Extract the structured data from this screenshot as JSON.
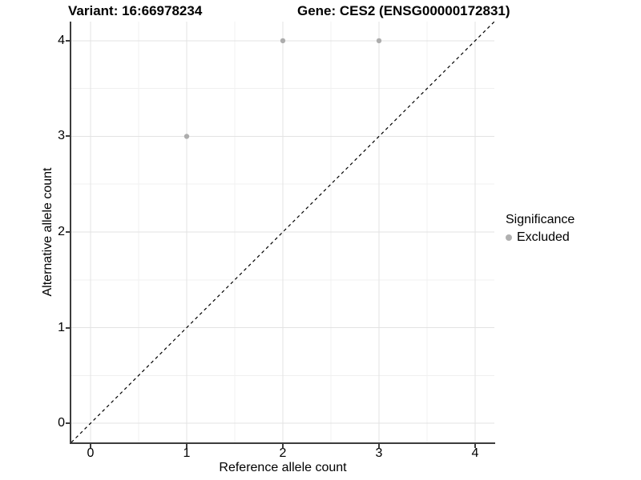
{
  "titles": {
    "variant": "Variant: 16:66978234",
    "gene": "Gene: CES2 (ENSG00000172831)"
  },
  "chart_data": {
    "type": "scatter",
    "xlabel": "Reference allele count",
    "ylabel": "Alternative allele count",
    "xlim": [
      -0.2,
      4.2
    ],
    "ylim": [
      -0.2,
      4.2
    ],
    "x_major_ticks": [
      0,
      1,
      2,
      3,
      4
    ],
    "y_major_ticks": [
      0,
      1,
      2,
      3,
      4
    ],
    "x_tick_labels": [
      "0",
      "1",
      "2",
      "3",
      "4"
    ],
    "y_tick_labels": [
      "0",
      "1",
      "2",
      "3",
      "4"
    ],
    "x_minor_ticks": [
      0.5,
      1.5,
      2.5,
      3.5
    ],
    "y_minor_ticks": [
      0.5,
      1.5,
      2.5,
      3.5
    ],
    "grid": true,
    "series": [
      {
        "name": "Excluded",
        "color": "#adadad",
        "points": [
          [
            1,
            3
          ],
          [
            2,
            4
          ],
          [
            3,
            4
          ]
        ]
      }
    ],
    "identity_line": {
      "style": "dashed",
      "color": "#000000",
      "from": [
        -0.2,
        -0.2
      ],
      "to": [
        4.2,
        4.2
      ]
    },
    "legend": {
      "position": "right",
      "title": "Significance",
      "items": [
        {
          "label": "Excluded",
          "color": "#b0b0b0"
        }
      ]
    },
    "colors": {
      "axis_line": "#3c3c3c",
      "major_grid": "#e3e3e3",
      "minor_grid": "#f0f0f0"
    }
  }
}
